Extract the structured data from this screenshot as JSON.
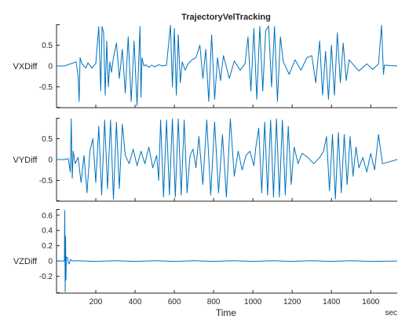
{
  "chart_data": {
    "type": "line",
    "title": "TrajectoryVelTracking",
    "xlabel": "Time",
    "x_unit": "sec",
    "xlim": [
      0,
      1735
    ],
    "xticks": [
      200,
      400,
      600,
      800,
      1000,
      1200,
      1400,
      1600
    ],
    "grid": false,
    "line_color": "#0072BD",
    "panels": [
      {
        "ylabel": "VXDiff",
        "ylim": [
          -1.0,
          1.0
        ],
        "yticks": [
          -0.5,
          0,
          0.5
        ],
        "ytick_labels": [
          "-0.5",
          "0",
          "0.5"
        ],
        "x": [
          0,
          40,
          100,
          110,
          115,
          120,
          130,
          150,
          160,
          180,
          200,
          215,
          225,
          232,
          240,
          248,
          256,
          264,
          272,
          280,
          290,
          305,
          320,
          335,
          350,
          365,
          380,
          395,
          410,
          425,
          430,
          435,
          445,
          455,
          470,
          485,
          500,
          520,
          540,
          560,
          580,
          590,
          600,
          610,
          620,
          630,
          640,
          655,
          670,
          690,
          710,
          730,
          745,
          760,
          775,
          790,
          805,
          820,
          835,
          850,
          880,
          905,
          935,
          960,
          975,
          990,
          1005,
          1020,
          1035,
          1050,
          1065,
          1080,
          1095,
          1110,
          1125,
          1140,
          1155,
          1185,
          1215,
          1245,
          1275,
          1300,
          1320,
          1340,
          1355,
          1370,
          1385,
          1400,
          1415,
          1430,
          1445,
          1460,
          1475,
          1490,
          1540,
          1580,
          1610,
          1640,
          1655,
          1665,
          1670,
          1735
        ],
        "y": [
          0,
          0,
          0.1,
          -0.25,
          -0.85,
          0.2,
          0.05,
          -0.05,
          0.08,
          -0.05,
          0.06,
          0.95,
          -0.6,
          0.95,
          0.8,
          -0.7,
          0.6,
          -0.5,
          0.1,
          -0.15,
          0.2,
          0.55,
          -0.3,
          0.4,
          -0.65,
          0.7,
          -0.85,
          0.6,
          -0.95,
          0.95,
          -0.75,
          0.2,
          0,
          0.03,
          -0.03,
          0.02,
          -0.02,
          0.03,
          0,
          0.02,
          0.98,
          -0.5,
          0.9,
          -0.7,
          0.75,
          -0.4,
          0.1,
          -0.1,
          0.05,
          0.15,
          0.2,
          0.5,
          -0.3,
          0.4,
          -0.85,
          0.75,
          -0.8,
          0.2,
          -0.35,
          0.25,
          -0.3,
          0.12,
          -0.1,
          0.05,
          0.7,
          -0.6,
          0.9,
          -0.8,
          0.95,
          -0.6,
          0.85,
          0.96,
          -0.5,
          0.95,
          -0.85,
          0.7,
          0.1,
          -0.2,
          0.15,
          -0.1,
          0.2,
          0.25,
          -0.4,
          0.6,
          -0.7,
          0.35,
          -0.8,
          0.5,
          -0.7,
          0.8,
          -0.4,
          0.55,
          -0.35,
          0.15,
          -0.12,
          0.05,
          -0.08,
          0.05,
          0.98,
          -0.2,
          0.02,
          0
        ]
      },
      {
        "ylabel": "VYDiff",
        "ylim": [
          -1.0,
          1.0
        ],
        "yticks": [
          -0.5,
          0,
          0.5
        ],
        "ytick_labels": [
          "-0.5",
          "0",
          "0.5"
        ],
        "x": [
          0,
          40,
          60,
          70,
          75,
          80,
          85,
          95,
          110,
          125,
          140,
          155,
          170,
          185,
          200,
          215,
          230,
          245,
          260,
          275,
          290,
          305,
          320,
          335,
          350,
          370,
          390,
          410,
          430,
          450,
          470,
          490,
          510,
          520,
          530,
          545,
          560,
          575,
          590,
          605,
          620,
          635,
          650,
          665,
          680,
          695,
          710,
          725,
          745,
          765,
          785,
          805,
          825,
          845,
          865,
          885,
          905,
          925,
          945,
          965,
          985,
          1005,
          1015,
          1030,
          1045,
          1060,
          1075,
          1090,
          1105,
          1120,
          1135,
          1150,
          1165,
          1180,
          1195,
          1210,
          1230,
          1250,
          1280,
          1310,
          1340,
          1360,
          1375,
          1390,
          1405,
          1420,
          1435,
          1450,
          1465,
          1480,
          1495,
          1510,
          1525,
          1540,
          1560,
          1580,
          1600,
          1620,
          1640,
          1660,
          1735
        ],
        "y": [
          0,
          0,
          0.02,
          -0.3,
          0.98,
          -0.45,
          0.2,
          -0.1,
          0.05,
          -0.55,
          0.1,
          -0.8,
          0.2,
          0.5,
          -0.55,
          0.8,
          -0.85,
          0.95,
          -0.7,
          0.95,
          -0.95,
          0.9,
          -0.7,
          0.85,
          0.1,
          -0.1,
          0.25,
          -0.15,
          0.2,
          -0.1,
          0.3,
          -0.2,
          0.1,
          -0.5,
          0.95,
          -0.9,
          0.95,
          -0.85,
          0.98,
          -0.9,
          0.98,
          -0.85,
          0.95,
          -0.8,
          0.1,
          0.25,
          -0.2,
          0.55,
          -0.6,
          0.95,
          -0.85,
          0.9,
          -0.8,
          0.6,
          -0.9,
          0.98,
          -0.4,
          0.2,
          -0.25,
          0.1,
          0.2,
          -0.15,
          0.3,
          0.75,
          -0.8,
          0.9,
          -0.85,
          0.95,
          -0.9,
          0.98,
          -0.9,
          0.95,
          -0.85,
          0.8,
          -0.6,
          0.3,
          -0.1,
          0.15,
          0.05,
          -0.1,
          0.05,
          0.2,
          0.55,
          -0.75,
          0.6,
          -0.95,
          0.65,
          -0.8,
          0.6,
          -0.6,
          0.55,
          -0.4,
          0.3,
          -0.2,
          0.05,
          -0.3,
          0.15,
          -0.25,
          0.6,
          -0.1,
          0
        ]
      },
      {
        "ylabel": "VZDiff",
        "ylim": [
          -0.42,
          0.68
        ],
        "yticks": [
          -0.2,
          0,
          0.2,
          0.4,
          0.6
        ],
        "ytick_labels": [
          "-0.2",
          "0",
          "0.2",
          "0.4",
          "0.6"
        ],
        "x": [
          0,
          40,
          42,
          44,
          46,
          48,
          50,
          55,
          60,
          65,
          70,
          80,
          100,
          200,
          300,
          400,
          500,
          600,
          700,
          800,
          900,
          1000,
          1100,
          1200,
          1300,
          1400,
          1500,
          1600,
          1735
        ],
        "y": [
          0,
          0,
          0.66,
          -0.4,
          0.32,
          -0.25,
          0.05,
          0.05,
          -0.02,
          -0.04,
          0.02,
          0,
          0.005,
          -0.005,
          0.005,
          -0.005,
          0.005,
          -0.005,
          0.005,
          -0.005,
          0.005,
          -0.005,
          0.005,
          -0.005,
          0.005,
          -0.005,
          0.005,
          -0.005,
          0
        ]
      }
    ]
  }
}
